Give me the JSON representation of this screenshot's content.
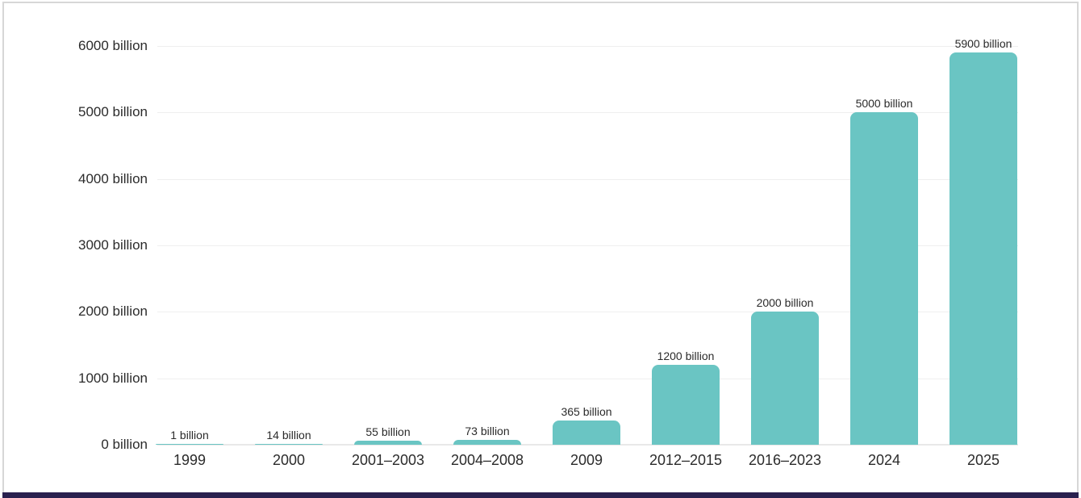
{
  "chart_data": {
    "type": "bar",
    "title": "",
    "xlabel": "",
    "ylabel": "",
    "unit": "billion",
    "ylim": [
      0,
      6000
    ],
    "grid": true,
    "legend": false,
    "categories": [
      "1999",
      "2000",
      "2001–2003",
      "2004–2008",
      "2009",
      "2012–2015",
      "2016–2023",
      "2024",
      "2025"
    ],
    "values": [
      1,
      14,
      55,
      73,
      365,
      1200,
      2000,
      5000,
      5900
    ],
    "value_labels": [
      "1 billion",
      "14 billion",
      "55 billion",
      "73 billion",
      "365 billion",
      "1200 billion",
      "2000 billion",
      "5000 billion",
      "5900 billion"
    ],
    "yticks": [
      {
        "value": 0,
        "label": "0 billion"
      },
      {
        "value": 1000,
        "label": "1000 billion"
      },
      {
        "value": 2000,
        "label": "2000 billion"
      },
      {
        "value": 3000,
        "label": "3000 billion"
      },
      {
        "value": 4000,
        "label": "4000 billion"
      },
      {
        "value": 5000,
        "label": "5000 billion"
      },
      {
        "value": 6000,
        "label": "6000 billion"
      }
    ],
    "colors": {
      "bar": "#6AC5C3",
      "gridline": "#EFEFEF",
      "baseline": "#E8E8E8",
      "text": "#2B2B2B",
      "card_border": "#D7D7D7",
      "bottom_accent": "#29204E",
      "background": "#FFFFFF"
    }
  }
}
